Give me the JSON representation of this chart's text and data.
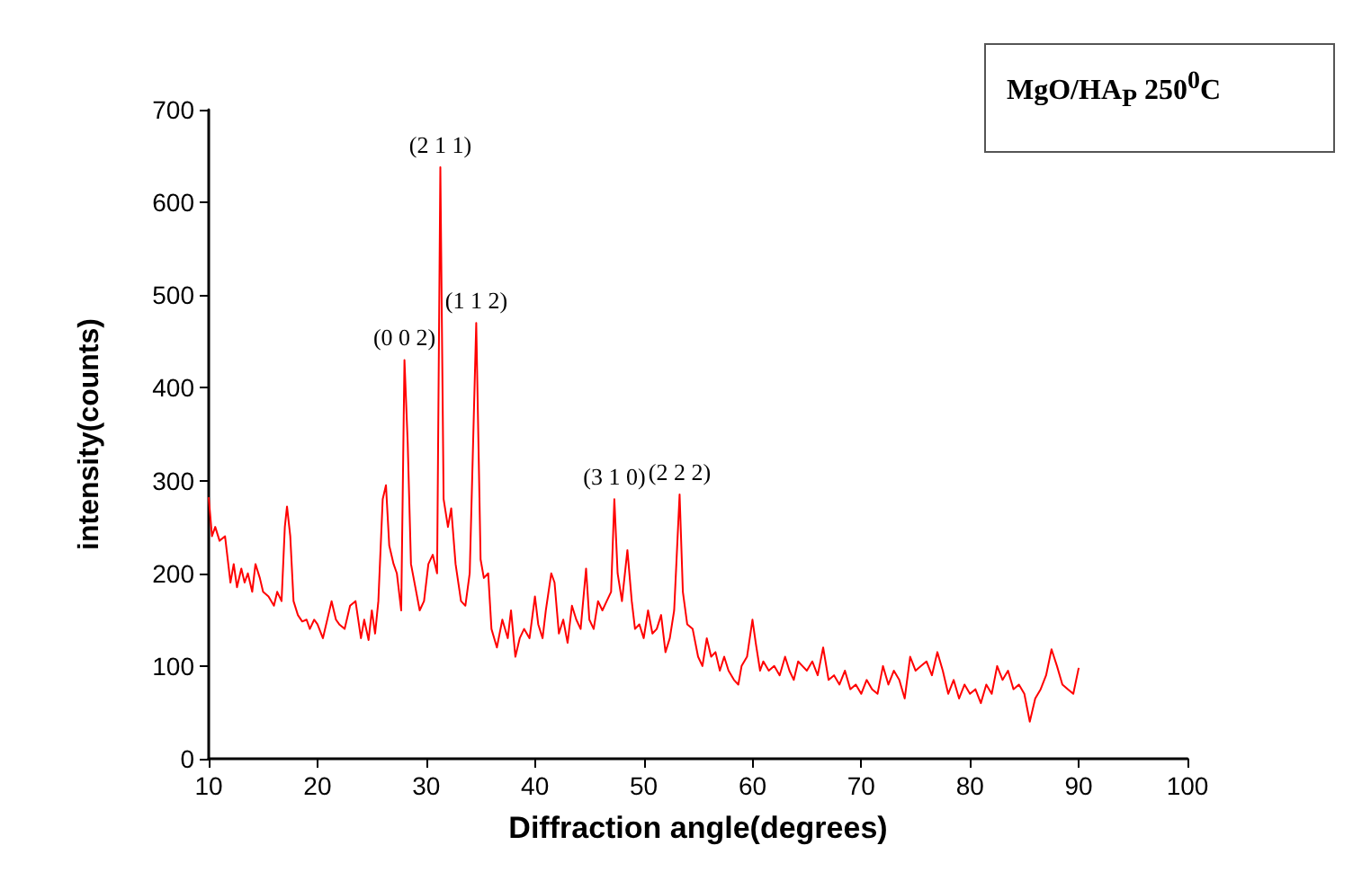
{
  "chart_data": {
    "type": "line",
    "xlabel": "Diffraction angle(degrees)",
    "ylabel": "intensity(counts)",
    "annotations": [
      "MgO/HA$_{P}$ 250$^{0}$C",
      {
        "text": "(0 0 2)",
        "x": 28,
        "y": 430
      },
      {
        "text": "(2 1 1)",
        "x": 31.3,
        "y": 638
      },
      {
        "text": "(1 1 2)",
        "x": 34.6,
        "y": 470
      },
      {
        "text": "(3 1 0)",
        "x": 47.3,
        "y": 280
      },
      {
        "text": "(2 2 2)",
        "x": 53.3,
        "y": 285
      }
    ],
    "xlim": [
      10,
      100
    ],
    "xticks": [
      10,
      20,
      30,
      40,
      50,
      60,
      70,
      80,
      90,
      100
    ],
    "ylim": [
      0,
      700
    ],
    "yticks": [
      0,
      100,
      200,
      300,
      400,
      500,
      600,
      700
    ],
    "grid": false,
    "marker": "none",
    "line_style": "solid",
    "series": [
      {
        "color": "#ff0000",
        "x": [
          10,
          10.3,
          10.6,
          11,
          11.5,
          12,
          12.3,
          12.6,
          13,
          13.3,
          13.6,
          14,
          14.3,
          14.7,
          15,
          15.5,
          16,
          16.3,
          16.7,
          17,
          17.2,
          17.5,
          17.8,
          18.2,
          18.6,
          19,
          19.3,
          19.7,
          20,
          20.5,
          21,
          21.3,
          21.7,
          22,
          22.5,
          23,
          23.5,
          24,
          24.3,
          24.7,
          25,
          25.3,
          25.6,
          26,
          26.3,
          26.6,
          27,
          27.3,
          27.7,
          28,
          28.3,
          28.6,
          29,
          29.4,
          29.8,
          30.2,
          30.6,
          31,
          31.3,
          31.6,
          32,
          32.3,
          32.7,
          33.2,
          33.6,
          34,
          34.6,
          35,
          35.3,
          35.7,
          36,
          36.5,
          37,
          37.5,
          37.8,
          38.2,
          38.6,
          39,
          39.5,
          40,
          40.3,
          40.7,
          41,
          41.5,
          41.8,
          42.2,
          42.6,
          43,
          43.4,
          43.8,
          44.2,
          44.7,
          45,
          45.4,
          45.8,
          46.2,
          46.6,
          47,
          47.3,
          47.6,
          48,
          48.5,
          48.9,
          49.2,
          49.6,
          50,
          50.4,
          50.8,
          51.2,
          51.6,
          52,
          52.4,
          52.8,
          53.3,
          53.6,
          54,
          54.5,
          55,
          55.4,
          55.8,
          56.2,
          56.6,
          57,
          57.4,
          57.8,
          58.3,
          58.7,
          59,
          59.5,
          60,
          60.3,
          60.7,
          61,
          61.5,
          62,
          62.5,
          63,
          63.4,
          63.8,
          64.2,
          64.6,
          65,
          65.5,
          66,
          66.5,
          67,
          67.5,
          68,
          68.5,
          69,
          69.5,
          70,
          70.5,
          71,
          71.5,
          72,
          72.5,
          73,
          73.5,
          74,
          74.5,
          75,
          75.5,
          76,
          76.5,
          77,
          77.5,
          78,
          78.5,
          79,
          79.5,
          80,
          80.5,
          81,
          81.5,
          82,
          82.5,
          83,
          83.5,
          84,
          84.5,
          85,
          85.5,
          86,
          86.5,
          87,
          87.5,
          88,
          88.5,
          89,
          89.5,
          90
        ],
        "values": [
          282,
          240,
          250,
          235,
          240,
          190,
          210,
          185,
          205,
          190,
          200,
          180,
          210,
          195,
          180,
          175,
          165,
          180,
          170,
          250,
          272,
          240,
          170,
          155,
          148,
          150,
          140,
          150,
          145,
          130,
          155,
          170,
          150,
          145,
          140,
          165,
          170,
          130,
          150,
          128,
          160,
          135,
          170,
          280,
          295,
          230,
          210,
          200,
          160,
          430,
          340,
          210,
          185,
          160,
          170,
          210,
          220,
          200,
          638,
          280,
          250,
          270,
          210,
          170,
          165,
          200,
          470,
          215,
          195,
          200,
          140,
          120,
          150,
          130,
          160,
          110,
          130,
          140,
          130,
          175,
          145,
          130,
          160,
          200,
          190,
          135,
          150,
          125,
          165,
          150,
          140,
          205,
          150,
          140,
          170,
          160,
          170,
          180,
          280,
          200,
          170,
          225,
          170,
          140,
          145,
          130,
          160,
          135,
          140,
          155,
          115,
          130,
          160,
          285,
          180,
          145,
          140,
          110,
          100,
          130,
          110,
          115,
          95,
          110,
          95,
          85,
          80,
          100,
          110,
          150,
          125,
          95,
          105,
          95,
          100,
          90,
          110,
          95,
          85,
          105,
          100,
          95,
          105,
          90,
          120,
          85,
          90,
          80,
          95,
          75,
          80,
          70,
          85,
          75,
          70,
          100,
          80,
          95,
          85,
          65,
          110,
          95,
          100,
          105,
          90,
          115,
          95,
          70,
          85,
          65,
          80,
          70,
          75,
          60,
          80,
          70,
          100,
          85,
          95,
          75,
          80,
          70,
          40,
          65,
          75,
          90,
          118,
          100,
          80,
          75,
          70,
          98
        ]
      }
    ]
  }
}
